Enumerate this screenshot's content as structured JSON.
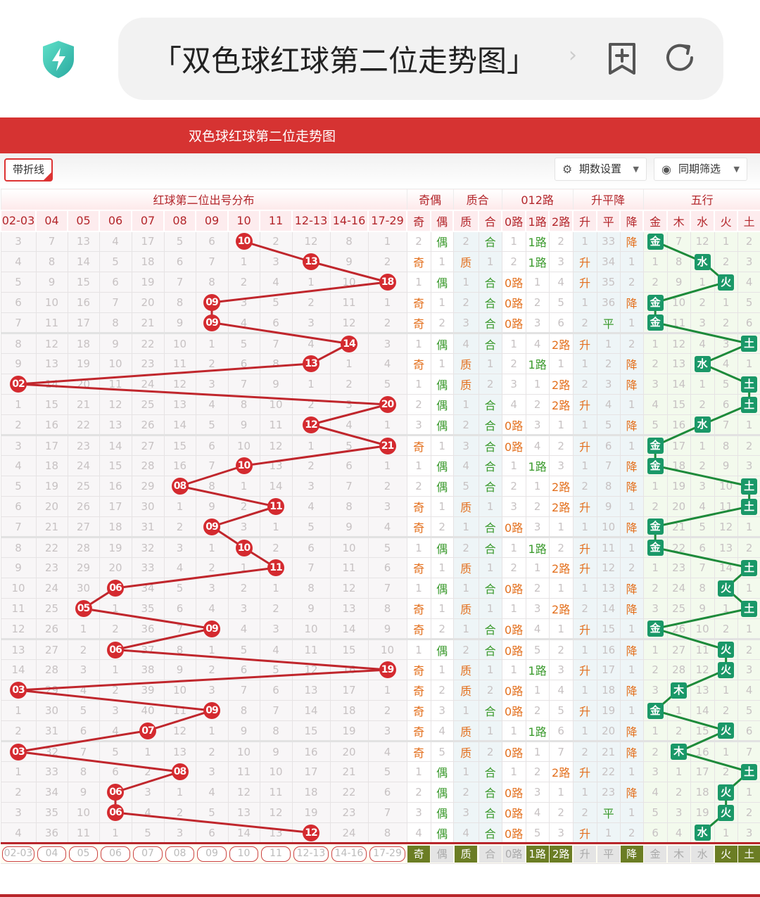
{
  "browser": {
    "address": "「双色球红球第二位走势图」",
    "icons": [
      "shield-bolt-icon",
      "add-bookmark-icon",
      "refresh-icon"
    ]
  },
  "page": {
    "title": "双色球红球第二位走势图"
  },
  "toolbar": {
    "polyline_toggle": "带折线",
    "polyline_checked": true,
    "period_settings": "期数设置",
    "same_period_filter": "同期筛选"
  },
  "headers": {
    "groups": [
      "红球第二位出号分布",
      "奇偶",
      "质合",
      "012路",
      "升平降",
      "五行"
    ],
    "dist": [
      "02-03",
      "04",
      "05",
      "06",
      "07",
      "08",
      "09",
      "10",
      "11",
      "12-13",
      "14-16",
      "17-29"
    ],
    "oe": [
      "奇",
      "偶"
    ],
    "pc": [
      "质",
      "合"
    ],
    "r": [
      "0路",
      "1路",
      "2路"
    ],
    "u": [
      "升",
      "平",
      "降"
    ],
    "w": [
      "金",
      "木",
      "水",
      "火",
      "土"
    ]
  },
  "colors": {
    "ball": "#d42a2f",
    "wuxing": "#1a9868",
    "orange": "#e3701e",
    "green": "#3b9a2d",
    "title_bar": "#d63332",
    "footer_active": "#6b7d24"
  },
  "rows": [
    {
      "d": [
        "3",
        "7",
        "13",
        "4",
        "17",
        "5",
        "6",
        "10",
        "2",
        "12",
        "8",
        "1"
      ],
      "b": 7,
      "oe": [
        "2",
        "偶"
      ],
      "pc": [
        "2",
        "合"
      ],
      "r": [
        "1",
        "1路",
        "2"
      ],
      "u": [
        "1",
        "33",
        "降"
      ],
      "w": [
        "金",
        "7",
        "12",
        "1",
        "2"
      ]
    },
    {
      "d": [
        "4",
        "8",
        "14",
        "5",
        "18",
        "6",
        "7",
        "1",
        "3",
        "13",
        "9",
        "2"
      ],
      "b": 9,
      "oe": [
        "奇",
        "1"
      ],
      "pc": [
        "质",
        "1"
      ],
      "r": [
        "2",
        "1路",
        "3"
      ],
      "u": [
        "升",
        "34",
        "1"
      ],
      "w": [
        "1",
        "8",
        "水",
        "2",
        "3"
      ]
    },
    {
      "d": [
        "5",
        "9",
        "15",
        "6",
        "19",
        "7",
        "8",
        "2",
        "4",
        "1",
        "10",
        "18"
      ],
      "b": 11,
      "oe": [
        "1",
        "偶"
      ],
      "pc": [
        "1",
        "合"
      ],
      "r": [
        "0路",
        "1",
        "4"
      ],
      "u": [
        "升",
        "35",
        "2"
      ],
      "w": [
        "2",
        "9",
        "1",
        "火",
        "4"
      ]
    },
    {
      "d": [
        "6",
        "10",
        "16",
        "7",
        "20",
        "8",
        "09",
        "3",
        "5",
        "2",
        "11",
        "1"
      ],
      "b": 6,
      "oe": [
        "奇",
        "1"
      ],
      "pc": [
        "2",
        "合"
      ],
      "r": [
        "0路",
        "2",
        "5"
      ],
      "u": [
        "1",
        "36",
        "降"
      ],
      "w": [
        "金",
        "10",
        "2",
        "1",
        "5"
      ]
    },
    {
      "d": [
        "7",
        "11",
        "17",
        "8",
        "21",
        "9",
        "09",
        "4",
        "6",
        "3",
        "12",
        "2"
      ],
      "b": 6,
      "oe": [
        "奇",
        "2"
      ],
      "pc": [
        "3",
        "合"
      ],
      "r": [
        "0路",
        "3",
        "6"
      ],
      "u": [
        "2",
        "平",
        "1"
      ],
      "w": [
        "金",
        "11",
        "3",
        "2",
        "6"
      ]
    },
    {
      "d": [
        "8",
        "12",
        "18",
        "9",
        "22",
        "10",
        "1",
        "5",
        "7",
        "4",
        "14",
        "3"
      ],
      "b": 10,
      "oe": [
        "1",
        "偶"
      ],
      "pc": [
        "4",
        "合"
      ],
      "r": [
        "1",
        "4",
        "2路"
      ],
      "u": [
        "升",
        "1",
        "2"
      ],
      "w": [
        "1",
        "12",
        "4",
        "3",
        "土"
      ]
    },
    {
      "d": [
        "9",
        "13",
        "19",
        "10",
        "23",
        "11",
        "2",
        "6",
        "8",
        "13",
        "1",
        "4"
      ],
      "b": 9,
      "oe": [
        "奇",
        "1"
      ],
      "pc": [
        "质",
        "1"
      ],
      "r": [
        "2",
        "1路",
        "1"
      ],
      "u": [
        "1",
        "2",
        "降"
      ],
      "w": [
        "2",
        "13",
        "水",
        "4",
        "1"
      ]
    },
    {
      "d": [
        "02",
        "14",
        "20",
        "11",
        "24",
        "12",
        "3",
        "7",
        "9",
        "1",
        "2",
        "5"
      ],
      "b": 0,
      "oe": [
        "1",
        "偶"
      ],
      "pc": [
        "质",
        "2"
      ],
      "r": [
        "3",
        "1",
        "2路"
      ],
      "u": [
        "2",
        "3",
        "降"
      ],
      "w": [
        "3",
        "14",
        "1",
        "5",
        "土"
      ]
    },
    {
      "d": [
        "1",
        "15",
        "21",
        "12",
        "25",
        "13",
        "4",
        "8",
        "10",
        "2",
        "3",
        "20"
      ],
      "b": 11,
      "oe": [
        "2",
        "偶"
      ],
      "pc": [
        "1",
        "合"
      ],
      "r": [
        "4",
        "2",
        "2路"
      ],
      "u": [
        "升",
        "4",
        "1"
      ],
      "w": [
        "4",
        "15",
        "2",
        "6",
        "土"
      ]
    },
    {
      "d": [
        "2",
        "16",
        "22",
        "13",
        "26",
        "14",
        "5",
        "9",
        "11",
        "12",
        "4",
        "1"
      ],
      "b": 9,
      "oe": [
        "3",
        "偶"
      ],
      "pc": [
        "2",
        "合"
      ],
      "r": [
        "0路",
        "3",
        "1"
      ],
      "u": [
        "1",
        "5",
        "降"
      ],
      "w": [
        "5",
        "16",
        "水",
        "7",
        "1"
      ]
    },
    {
      "d": [
        "3",
        "17",
        "23",
        "14",
        "27",
        "15",
        "6",
        "10",
        "12",
        "1",
        "5",
        "21"
      ],
      "b": 11,
      "oe": [
        "奇",
        "1"
      ],
      "pc": [
        "3",
        "合"
      ],
      "r": [
        "0路",
        "4",
        "2"
      ],
      "u": [
        "升",
        "6",
        "1"
      ],
      "w": [
        "金",
        "17",
        "1",
        "8",
        "2"
      ]
    },
    {
      "d": [
        "4",
        "18",
        "24",
        "15",
        "28",
        "16",
        "7",
        "10",
        "13",
        "2",
        "6",
        "1"
      ],
      "b": 7,
      "oe": [
        "1",
        "偶"
      ],
      "pc": [
        "4",
        "合"
      ],
      "r": [
        "1",
        "1路",
        "3"
      ],
      "u": [
        "1",
        "7",
        "降"
      ],
      "w": [
        "金",
        "18",
        "2",
        "9",
        "3"
      ]
    },
    {
      "d": [
        "5",
        "19",
        "25",
        "16",
        "29",
        "08",
        "8",
        "1",
        "14",
        "3",
        "7",
        "2"
      ],
      "b": 5,
      "oe": [
        "2",
        "偶"
      ],
      "pc": [
        "5",
        "合"
      ],
      "r": [
        "2",
        "1",
        "2路"
      ],
      "u": [
        "2",
        "8",
        "降"
      ],
      "w": [
        "1",
        "19",
        "3",
        "10",
        "土"
      ]
    },
    {
      "d": [
        "6",
        "20",
        "26",
        "17",
        "30",
        "1",
        "9",
        "2",
        "11",
        "4",
        "8",
        "3"
      ],
      "b": 8,
      "oe": [
        "奇",
        "1"
      ],
      "pc": [
        "质",
        "1"
      ],
      "r": [
        "3",
        "2",
        "2路"
      ],
      "u": [
        "升",
        "9",
        "1"
      ],
      "w": [
        "2",
        "20",
        "4",
        "11",
        "土"
      ]
    },
    {
      "d": [
        "7",
        "21",
        "27",
        "18",
        "31",
        "2",
        "09",
        "3",
        "1",
        "5",
        "9",
        "4"
      ],
      "b": 6,
      "oe": [
        "奇",
        "2"
      ],
      "pc": [
        "1",
        "合"
      ],
      "r": [
        "0路",
        "3",
        "1"
      ],
      "u": [
        "1",
        "10",
        "降"
      ],
      "w": [
        "金",
        "21",
        "5",
        "12",
        "1"
      ]
    },
    {
      "d": [
        "8",
        "22",
        "28",
        "19",
        "32",
        "3",
        "1",
        "10",
        "2",
        "6",
        "10",
        "5"
      ],
      "b": 7,
      "oe": [
        "1",
        "偶"
      ],
      "pc": [
        "2",
        "合"
      ],
      "r": [
        "1",
        "1路",
        "2"
      ],
      "u": [
        "升",
        "11",
        "1"
      ],
      "w": [
        "金",
        "22",
        "6",
        "13",
        "2"
      ]
    },
    {
      "d": [
        "9",
        "23",
        "29",
        "20",
        "33",
        "4",
        "2",
        "1",
        "11",
        "7",
        "11",
        "6"
      ],
      "b": 8,
      "oe": [
        "奇",
        "1"
      ],
      "pc": [
        "质",
        "1"
      ],
      "r": [
        "2",
        "1",
        "2路"
      ],
      "u": [
        "升",
        "12",
        "2"
      ],
      "w": [
        "1",
        "23",
        "7",
        "14",
        "土"
      ]
    },
    {
      "d": [
        "10",
        "24",
        "30",
        "06",
        "34",
        "5",
        "3",
        "2",
        "1",
        "8",
        "12",
        "7"
      ],
      "b": 3,
      "oe": [
        "1",
        "偶"
      ],
      "pc": [
        "1",
        "合"
      ],
      "r": [
        "0路",
        "2",
        "1"
      ],
      "u": [
        "1",
        "13",
        "降"
      ],
      "w": [
        "2",
        "24",
        "8",
        "火",
        "1"
      ]
    },
    {
      "d": [
        "11",
        "25",
        "05",
        "1",
        "35",
        "6",
        "4",
        "3",
        "2",
        "9",
        "13",
        "8"
      ],
      "b": 2,
      "oe": [
        "奇",
        "1"
      ],
      "pc": [
        "质",
        "1"
      ],
      "r": [
        "1",
        "3",
        "2路"
      ],
      "u": [
        "2",
        "14",
        "降"
      ],
      "w": [
        "3",
        "25",
        "9",
        "1",
        "土"
      ]
    },
    {
      "d": [
        "12",
        "26",
        "1",
        "2",
        "36",
        "7",
        "09",
        "4",
        "3",
        "10",
        "14",
        "9"
      ],
      "b": 6,
      "oe": [
        "奇",
        "2"
      ],
      "pc": [
        "1",
        "合"
      ],
      "r": [
        "0路",
        "4",
        "1"
      ],
      "u": [
        "升",
        "15",
        "1"
      ],
      "w": [
        "金",
        "26",
        "10",
        "2",
        "1"
      ]
    },
    {
      "d": [
        "13",
        "27",
        "2",
        "06",
        "37",
        "8",
        "1",
        "5",
        "4",
        "11",
        "15",
        "10"
      ],
      "b": 3,
      "oe": [
        "1",
        "偶"
      ],
      "pc": [
        "2",
        "合"
      ],
      "r": [
        "0路",
        "5",
        "2"
      ],
      "u": [
        "1",
        "16",
        "降"
      ],
      "w": [
        "1",
        "27",
        "11",
        "火",
        "2"
      ]
    },
    {
      "d": [
        "14",
        "28",
        "3",
        "1",
        "38",
        "9",
        "2",
        "6",
        "5",
        "12",
        "16",
        "19"
      ],
      "b": 11,
      "oe": [
        "奇",
        "1"
      ],
      "pc": [
        "质",
        "1"
      ],
      "r": [
        "1",
        "1路",
        "3"
      ],
      "u": [
        "升",
        "17",
        "1"
      ],
      "w": [
        "2",
        "28",
        "12",
        "火",
        "3"
      ]
    },
    {
      "d": [
        "03",
        "29",
        "4",
        "2",
        "39",
        "10",
        "3",
        "7",
        "6",
        "13",
        "17",
        "1"
      ],
      "b": 0,
      "oe": [
        "奇",
        "2"
      ],
      "pc": [
        "质",
        "2"
      ],
      "r": [
        "0路",
        "1",
        "4"
      ],
      "u": [
        "1",
        "18",
        "降"
      ],
      "w": [
        "3",
        "木",
        "13",
        "1",
        "4"
      ]
    },
    {
      "d": [
        "1",
        "30",
        "5",
        "3",
        "40",
        "11",
        "09",
        "8",
        "7",
        "14",
        "18",
        "2"
      ],
      "b": 6,
      "oe": [
        "奇",
        "3"
      ],
      "pc": [
        "1",
        "合"
      ],
      "r": [
        "0路",
        "2",
        "5"
      ],
      "u": [
        "升",
        "19",
        "1"
      ],
      "w": [
        "金",
        "1",
        "14",
        "2",
        "5"
      ]
    },
    {
      "d": [
        "2",
        "31",
        "6",
        "4",
        "07",
        "12",
        "1",
        "9",
        "8",
        "15",
        "19",
        "3"
      ],
      "b": 4,
      "oe": [
        "奇",
        "4"
      ],
      "pc": [
        "质",
        "1"
      ],
      "r": [
        "1",
        "1路",
        "6"
      ],
      "u": [
        "1",
        "20",
        "降"
      ],
      "w": [
        "1",
        "2",
        "15",
        "火",
        "6"
      ]
    },
    {
      "d": [
        "03",
        "32",
        "7",
        "5",
        "1",
        "13",
        "2",
        "10",
        "9",
        "16",
        "20",
        "4"
      ],
      "b": 0,
      "oe": [
        "奇",
        "5"
      ],
      "pc": [
        "质",
        "2"
      ],
      "r": [
        "0路",
        "1",
        "7"
      ],
      "u": [
        "2",
        "21",
        "降"
      ],
      "w": [
        "2",
        "木",
        "16",
        "1",
        "7"
      ]
    },
    {
      "d": [
        "1",
        "33",
        "8",
        "6",
        "2",
        "08",
        "3",
        "11",
        "10",
        "17",
        "21",
        "5"
      ],
      "b": 5,
      "oe": [
        "1",
        "偶"
      ],
      "pc": [
        "1",
        "合"
      ],
      "r": [
        "1",
        "2",
        "2路"
      ],
      "u": [
        "升",
        "22",
        "1"
      ],
      "w": [
        "3",
        "1",
        "17",
        "2",
        "土"
      ]
    },
    {
      "d": [
        "2",
        "34",
        "9",
        "06",
        "3",
        "1",
        "4",
        "12",
        "11",
        "18",
        "22",
        "6"
      ],
      "b": 3,
      "oe": [
        "2",
        "偶"
      ],
      "pc": [
        "2",
        "合"
      ],
      "r": [
        "0路",
        "3",
        "1"
      ],
      "u": [
        "1",
        "23",
        "降"
      ],
      "w": [
        "4",
        "2",
        "18",
        "火",
        "1"
      ]
    },
    {
      "d": [
        "3",
        "35",
        "10",
        "06",
        "4",
        "2",
        "5",
        "13",
        "12",
        "19",
        "23",
        "7"
      ],
      "b": 3,
      "oe": [
        "3",
        "偶"
      ],
      "pc": [
        "3",
        "合"
      ],
      "r": [
        "0路",
        "4",
        "2"
      ],
      "u": [
        "2",
        "平",
        "1"
      ],
      "w": [
        "5",
        "3",
        "19",
        "火",
        "2"
      ]
    },
    {
      "d": [
        "4",
        "36",
        "11",
        "1",
        "5",
        "3",
        "6",
        "14",
        "13",
        "12",
        "24",
        "8"
      ],
      "b": 9,
      "oe": [
        "4",
        "偶"
      ],
      "pc": [
        "4",
        "合"
      ],
      "r": [
        "0路",
        "5",
        "3"
      ],
      "u": [
        "升",
        "1",
        "2"
      ],
      "w": [
        "6",
        "4",
        "水",
        "1",
        "3"
      ]
    }
  ],
  "footer": {
    "dist": [
      "02-03",
      "04",
      "05",
      "06",
      "07",
      "08",
      "09",
      "10",
      "11",
      "12-13",
      "14-16",
      "17-29"
    ],
    "picks": [
      {
        "label": "奇",
        "active": true
      },
      {
        "label": "偶",
        "active": false
      },
      {
        "label": "质",
        "active": true
      },
      {
        "label": "合",
        "active": false
      },
      {
        "label": "0路",
        "active": false
      },
      {
        "label": "1路",
        "active": true
      },
      {
        "label": "2路",
        "active": true
      },
      {
        "label": "升",
        "active": false
      },
      {
        "label": "平",
        "active": false
      },
      {
        "label": "降",
        "active": true
      },
      {
        "label": "金",
        "active": false
      },
      {
        "label": "木",
        "active": false
      },
      {
        "label": "水",
        "active": false
      },
      {
        "label": "火",
        "active": true
      },
      {
        "label": "土",
        "active": true
      }
    ]
  }
}
